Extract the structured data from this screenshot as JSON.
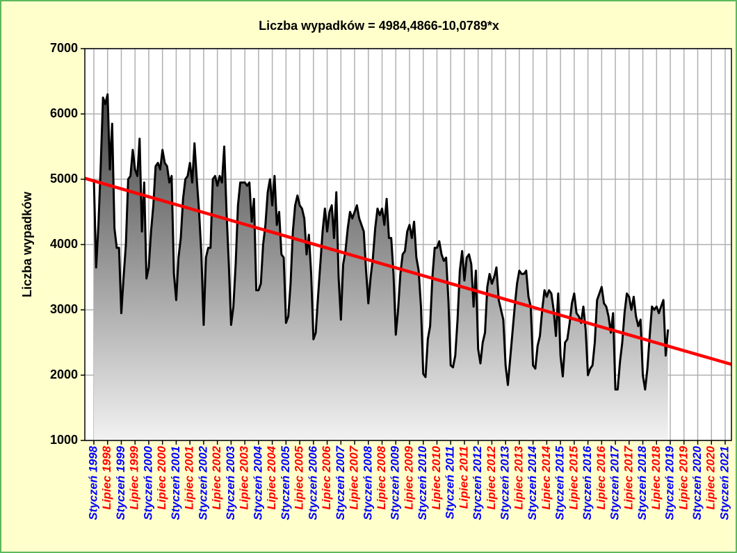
{
  "chart_data": {
    "type": "line",
    "title": "Liczba wypadków = 4984,4866-10,0789*x",
    "y_label": "Liczba wypadków",
    "categories": [
      "Styczeń 1998",
      null,
      null,
      null,
      null,
      null,
      "Lipiec 1998",
      null,
      null,
      null,
      null,
      null,
      "Styczeń 1999",
      null,
      null,
      null,
      null,
      null,
      "Lipiec 1999",
      null,
      null,
      null,
      null,
      null,
      "Styczeń 2000",
      null,
      null,
      null,
      null,
      null,
      "Lipiec 2000",
      null,
      null,
      null,
      null,
      null,
      "Styczeń 2001",
      null,
      null,
      null,
      null,
      null,
      "Lipiec 2001",
      null,
      null,
      null,
      null,
      null,
      "Styczeń 2002",
      null,
      null,
      null,
      null,
      null,
      "Lipiec 2002",
      null,
      null,
      null,
      null,
      null,
      "Styczeń 2003",
      null,
      null,
      null,
      null,
      null,
      "Lipiec 2003",
      null,
      null,
      null,
      null,
      null,
      "Styczeń 2004",
      null,
      null,
      null,
      null,
      null,
      "Lipiec 2004",
      null,
      null,
      null,
      null,
      null,
      "Styczeń 2005",
      null,
      null,
      null,
      null,
      null,
      "Lipiec 2005",
      null,
      null,
      null,
      null,
      null,
      "Styczeń 2006",
      null,
      null,
      null,
      null,
      null,
      "Lipiec 2006",
      null,
      null,
      null,
      null,
      null,
      "Styczeń 2007",
      null,
      null,
      null,
      null,
      null,
      "Lipiec 2007",
      null,
      null,
      null,
      null,
      null,
      "Styczeń 2008",
      null,
      null,
      null,
      null,
      null,
      "Lipiec 2008",
      null,
      null,
      null,
      null,
      null,
      "Styczeń 2009",
      null,
      null,
      null,
      null,
      null,
      "Lipiec 2009",
      null,
      null,
      null,
      null,
      null,
      "Styczeń 2010",
      null,
      null,
      null,
      null,
      null,
      "Lipiec 2010",
      null,
      null,
      null,
      null,
      null,
      "Styczeń 2011",
      null,
      null,
      null,
      null,
      null,
      "Lipiec 2011",
      null,
      null,
      null,
      null,
      null,
      "Styczeń 2012",
      null,
      null,
      null,
      null,
      null,
      "Lipiec 2012",
      null,
      null,
      null,
      null,
      null,
      "Styczeń 2013",
      null,
      null,
      null,
      null,
      null,
      "Lipiec 2013",
      null,
      null,
      null,
      null,
      null,
      "Styczeń 2014",
      null,
      null,
      null,
      null,
      null,
      "Lipiec 2014",
      null,
      null,
      null,
      null,
      null,
      "Styczeń 2015",
      null,
      null,
      null,
      null,
      null,
      "Lipiec 2015",
      null,
      null,
      null,
      null,
      null,
      "Styczeń 2016",
      null,
      null,
      null,
      null,
      null,
      "Lipiec 2016",
      null,
      null,
      null,
      null,
      null,
      "Styczeń 2017",
      null,
      null,
      null,
      null,
      null,
      "Lipiec 2017",
      null,
      null,
      null,
      null,
      null,
      "Styczeń 2018",
      null,
      null,
      null,
      null,
      null,
      "Lipiec 2018",
      null,
      null,
      null,
      null,
      null,
      "Styczeń 2019",
      null,
      null,
      null,
      null,
      null,
      "Lipiec 2019",
      null,
      null,
      null,
      null,
      null,
      "Styczeń 2020",
      null,
      null,
      null,
      null,
      null,
      "Lipiec 2020",
      null,
      null,
      null,
      null,
      null,
      "Styczeń 2021"
    ],
    "tick_label_colors": [
      "#0000ff",
      "#ff0000"
    ],
    "series": [
      {
        "color": "#000000",
        "values": [
          5000,
          3650,
          4300,
          5200,
          6250,
          6150,
          6300,
          5150,
          5850,
          4250,
          3950,
          3950,
          2950,
          3500,
          4000,
          5000,
          5050,
          5450,
          5150,
          5050,
          5620,
          4200,
          4950,
          3480,
          3650,
          4200,
          4600,
          5200,
          5250,
          5150,
          5450,
          5250,
          5200,
          4950,
          5050,
          3550,
          3150,
          3800,
          4100,
          4700,
          5000,
          5050,
          5250,
          4950,
          5550,
          5000,
          4500,
          3850,
          2770,
          3800,
          3950,
          3950,
          5000,
          5050,
          4900,
          5050,
          4950,
          5500,
          4500,
          3700,
          2770,
          3050,
          3700,
          4600,
          4950,
          4950,
          4950,
          4900,
          4950,
          4350,
          4700,
          3300,
          3300,
          3400,
          4000,
          4300,
          4800,
          5000,
          4600,
          5050,
          4300,
          4500,
          3850,
          3800,
          2800,
          2900,
          3400,
          4200,
          4600,
          4750,
          4600,
          4550,
          4400,
          3850,
          4150,
          3550,
          2550,
          2650,
          3200,
          3700,
          4200,
          4550,
          4200,
          4500,
          4600,
          4100,
          4800,
          3500,
          2850,
          3700,
          3900,
          4250,
          4500,
          4400,
          4500,
          4600,
          4400,
          4300,
          4200,
          3600,
          3100,
          3500,
          3800,
          4250,
          4550,
          4450,
          4550,
          4300,
          4700,
          4100,
          4100,
          3550,
          2620,
          3000,
          3550,
          3850,
          3900,
          4200,
          4300,
          4100,
          4350,
          3800,
          3600,
          3050,
          2020,
          1970,
          2550,
          2750,
          3500,
          3950,
          3950,
          4050,
          3850,
          3750,
          3800,
          3150,
          2150,
          2120,
          2300,
          2850,
          3600,
          3900,
          3450,
          3800,
          3850,
          3700,
          3050,
          3600,
          2400,
          2180,
          2500,
          2650,
          3350,
          3550,
          3400,
          3500,
          3650,
          3150,
          3000,
          2850,
          2150,
          1850,
          2250,
          2650,
          3050,
          3400,
          3600,
          3550,
          3550,
          3600,
          3200,
          3050,
          2150,
          2100,
          2450,
          2600,
          3000,
          3300,
          3200,
          3300,
          3250,
          3000,
          2600,
          3250,
          2300,
          1980,
          2500,
          2550,
          2800,
          3100,
          3250,
          2950,
          2900,
          2800,
          3050,
          2700,
          2000,
          2100,
          2150,
          2500,
          3150,
          3250,
          3350,
          3100,
          3050,
          2900,
          2650,
          2950,
          1780,
          1780,
          2200,
          2500,
          2950,
          3250,
          3200,
          3000,
          3200,
          2900,
          2750,
          2850,
          2000,
          1780,
          2100,
          2600,
          3050,
          3000,
          3050,
          2950,
          3050,
          3150,
          2300,
          2700,
          null,
          null,
          null,
          null,
          null,
          null,
          null,
          null,
          null,
          null,
          null,
          null,
          null,
          null,
          null,
          null,
          null,
          null,
          null,
          null,
          null,
          null,
          null,
          null,
          null
        ]
      }
    ],
    "trend": {
      "color": "#ff0000",
      "values": [
        4974,
        2193
      ]
    },
    "ylim": [
      1000,
      7000
    ],
    "yticks": [
      1000,
      2000,
      3000,
      4000,
      5000,
      6000,
      7000
    ],
    "grid": true
  }
}
